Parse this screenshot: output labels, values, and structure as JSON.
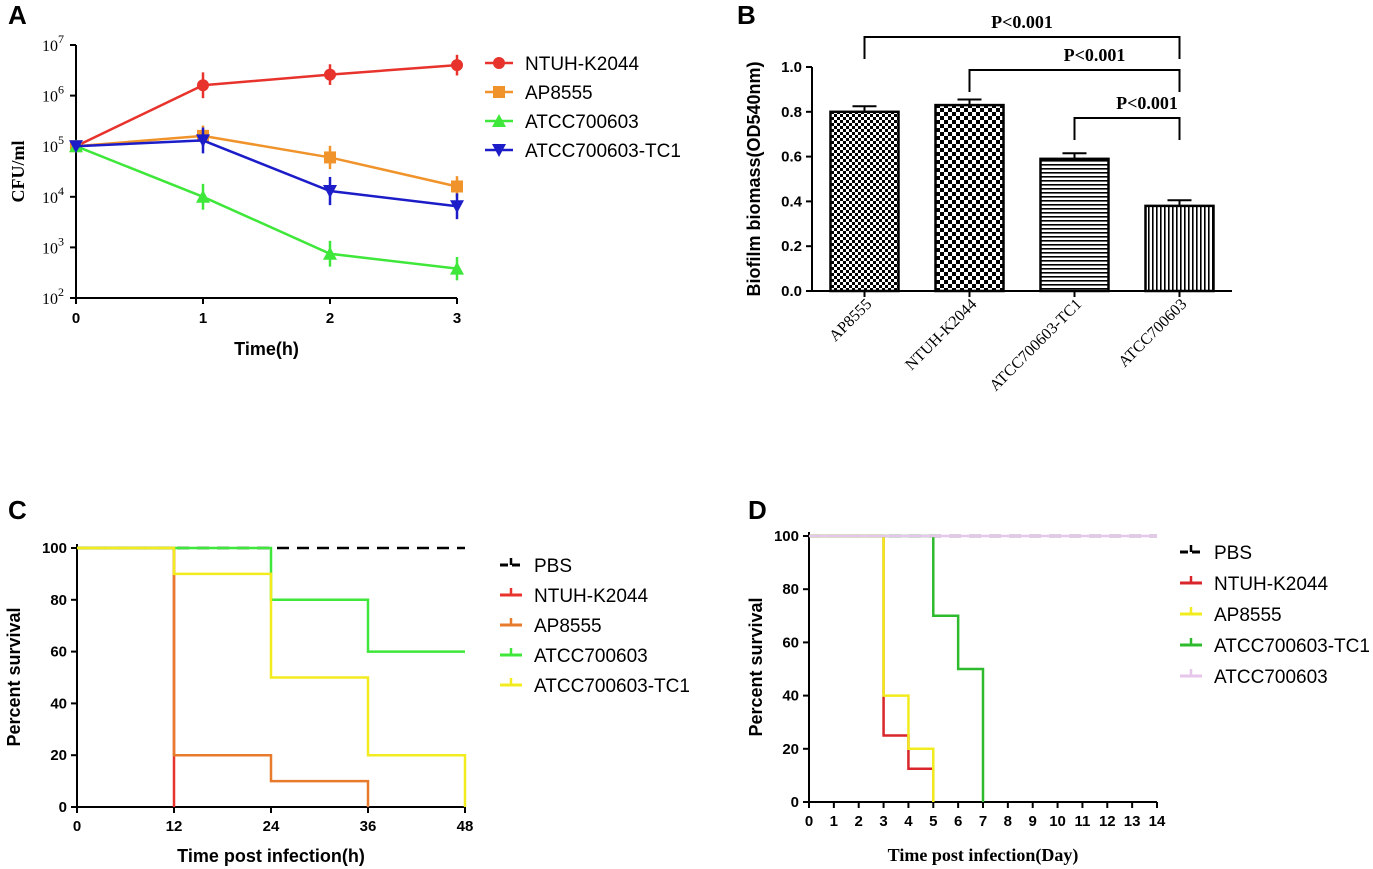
{
  "panels": {
    "A": "A",
    "B": "B",
    "C": "C",
    "D": "D"
  },
  "chart_data": [
    {
      "panel": "A",
      "type": "line",
      "scale": "log",
      "xlabel": "Time(h)",
      "ylabel": "CFU/ml",
      "x": [
        0,
        1,
        2,
        3
      ],
      "xticks": [
        "0",
        "1",
        "2",
        "3"
      ],
      "ylim": [
        100,
        10000000
      ],
      "yticks": [
        {
          "value": 100,
          "base": "10",
          "exp": "2"
        },
        {
          "value": 1000,
          "base": "10",
          "exp": "3"
        },
        {
          "value": 10000,
          "base": "10",
          "exp": "4"
        },
        {
          "value": 100000,
          "base": "10",
          "exp": "5"
        },
        {
          "value": 1000000,
          "base": "10",
          "exp": "6"
        },
        {
          "value": 10000000,
          "base": "10",
          "exp": "7"
        }
      ],
      "series": [
        {
          "name": "NTUH-K2044",
          "color": "#e8322c",
          "marker": "circle",
          "values": [
            100000,
            1600000,
            2600000,
            4000000
          ],
          "err_factor": [
            1,
            1.8,
            1.6,
            1.6
          ]
        },
        {
          "name": "AP8555",
          "color": "#f0932a",
          "marker": "square",
          "values": [
            100000,
            160000,
            60000,
            16000
          ],
          "err_factor": [
            1,
            1.6,
            1.7,
            1.6
          ]
        },
        {
          "name": "ATCC700603",
          "color": "#3ee73a",
          "marker": "triangle-up",
          "values": [
            100000,
            10000,
            750,
            380
          ],
          "err_factor": [
            1,
            1.8,
            1.8,
            1.7
          ]
        },
        {
          "name": "ATCC700603-TC1",
          "color": "#1c1cc8",
          "marker": "triangle-down",
          "values": [
            100000,
            130000,
            13000,
            6500
          ],
          "err_factor": [
            1,
            1.8,
            1.9,
            1.8
          ]
        }
      ]
    },
    {
      "panel": "B",
      "type": "bar",
      "ylabel": "Biofilm biomass(OD540nm)",
      "categories": [
        "AP8555",
        "NTUH-K2044",
        "ATCC700603-TC1",
        "ATCC700603"
      ],
      "values": [
        0.8,
        0.83,
        0.59,
        0.38
      ],
      "errors": [
        0.025,
        0.025,
        0.025,
        0.025
      ],
      "patterns": [
        "fine-check",
        "coarse-check",
        "horizontal",
        "vertical"
      ],
      "ylim": [
        0,
        1.0
      ],
      "yticks": [
        "0.0",
        "0.2",
        "0.4",
        "0.6",
        "0.8",
        "1.0"
      ],
      "annotations": [
        {
          "from": 0,
          "to": 3,
          "text": "P<0.001"
        },
        {
          "from": 1,
          "to": 3,
          "text": "P<0.001"
        },
        {
          "from": 2,
          "to": 3,
          "text": "P<0.001"
        }
      ]
    },
    {
      "panel": "C",
      "type": "line",
      "subtype": "survival-step",
      "xlabel": "Time  post infection(h)",
      "ylabel": "Percent survival",
      "xlim": [
        0,
        48
      ],
      "ylim": [
        0,
        100
      ],
      "xticks": [
        "0",
        "12",
        "24",
        "36",
        "48"
      ],
      "yticks": [
        "0",
        "20",
        "40",
        "60",
        "80",
        "100"
      ],
      "series": [
        {
          "name": "PBS",
          "color": "#000000",
          "dashed": true,
          "points": [
            [
              0,
              100
            ],
            [
              48,
              100
            ]
          ]
        },
        {
          "name": "NTUH-K2044",
          "color": "#e8322c",
          "points": [
            [
              0,
              100
            ],
            [
              12,
              100
            ],
            [
              12,
              0
            ]
          ]
        },
        {
          "name": "AP8555",
          "color": "#e87a2c",
          "points": [
            [
              0,
              100
            ],
            [
              12,
              100
            ],
            [
              12,
              20
            ],
            [
              24,
              20
            ],
            [
              24,
              10
            ],
            [
              36,
              10
            ],
            [
              36,
              0
            ]
          ]
        },
        {
          "name": "ATCC700603",
          "color": "#3ee73a",
          "points": [
            [
              0,
              100
            ],
            [
              24,
              100
            ],
            [
              24,
              80
            ],
            [
              36,
              80
            ],
            [
              36,
              60
            ],
            [
              48,
              60
            ]
          ]
        },
        {
          "name": "ATCC700603-TC1",
          "color": "#f2ec1e",
          "points": [
            [
              0,
              100
            ],
            [
              12,
              100
            ],
            [
              12,
              90
            ],
            [
              24,
              90
            ],
            [
              24,
              50
            ],
            [
              36,
              50
            ],
            [
              36,
              20
            ],
            [
              48,
              20
            ],
            [
              48,
              0
            ]
          ]
        }
      ]
    },
    {
      "panel": "D",
      "type": "line",
      "subtype": "survival-step",
      "xlabel": "Time post infection(Day)",
      "ylabel": "Percent survival",
      "xlim": [
        0,
        14
      ],
      "ylim": [
        0,
        100
      ],
      "xticks": [
        "0",
        "1",
        "2",
        "3",
        "4",
        "5",
        "6",
        "7",
        "8",
        "9",
        "10",
        "11",
        "12",
        "13",
        "14"
      ],
      "yticks": [
        "0",
        "20",
        "40",
        "60",
        "80",
        "100"
      ],
      "series": [
        {
          "name": "PBS",
          "color": "#000000",
          "dashed": true,
          "points": [
            [
              0,
              100
            ],
            [
              14,
              100
            ]
          ]
        },
        {
          "name": "NTUH-K2044",
          "color": "#d8262a",
          "points": [
            [
              0,
              100
            ],
            [
              3,
              100
            ],
            [
              3,
              40
            ],
            [
              3,
              25
            ],
            [
              4,
              25
            ],
            [
              4,
              12.5
            ],
            [
              5,
              12.5
            ],
            [
              5,
              0
            ]
          ]
        },
        {
          "name": "AP8555",
          "color": "#f2ec1e",
          "points": [
            [
              0,
              100
            ],
            [
              3,
              100
            ],
            [
              3,
              40
            ],
            [
              4,
              40
            ],
            [
              4,
              20
            ],
            [
              5,
              20
            ],
            [
              5,
              0
            ]
          ]
        },
        {
          "name": "ATCC700603-TC1",
          "color": "#2dbb2d",
          "points": [
            [
              0,
              100
            ],
            [
              5,
              100
            ],
            [
              5,
              70
            ],
            [
              6,
              70
            ],
            [
              6,
              50
            ],
            [
              7,
              50
            ],
            [
              7,
              0
            ]
          ]
        },
        {
          "name": "ATCC700603",
          "color": "#e6c6ea",
          "points": [
            [
              0,
              100
            ],
            [
              14,
              100
            ]
          ]
        }
      ]
    }
  ]
}
